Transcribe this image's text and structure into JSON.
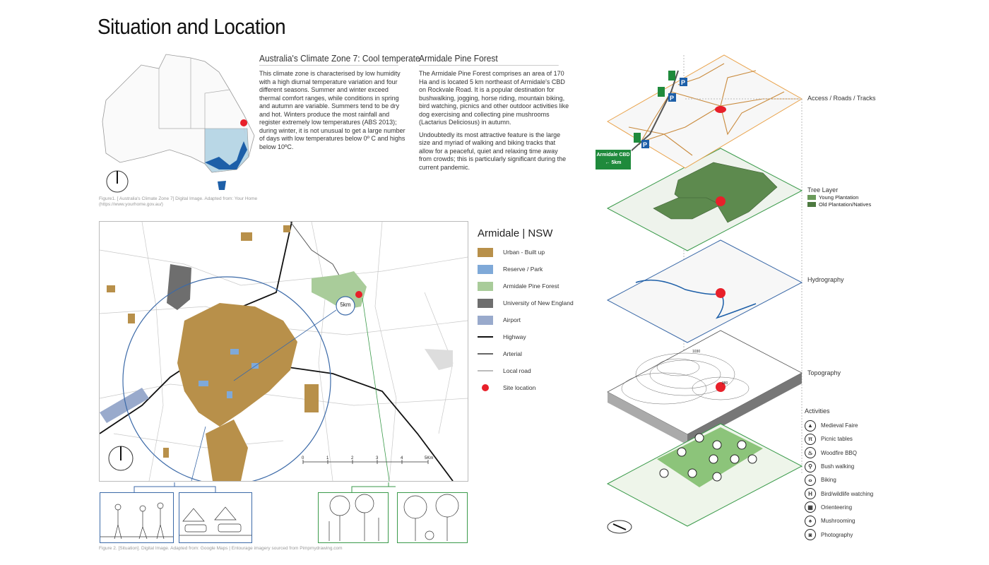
{
  "title": "Situation and Location",
  "climate": {
    "heading": "Australia's Climate Zone 7: Cool temperate",
    "body": "This climate zone is characterised by low humidity with a high diurnal temperature variation and four different seasons. Summer and winter exceed thermal comfort ranges, while conditions in spring and autumn are variable. Summers tend to be dry and hot.  Winters produce the most rainfall and register extremely low temperatures (ABS 2013); during winter, it is not unusual to get a large number of days with low temperatures below 0º C and highs below 10ºC."
  },
  "forest": {
    "heading": "Armidale Pine Forest",
    "body1": "The Armidale Pine Forest comprises an area of 170 Ha and is located 5 km northeast of Armidale's CBD on Rockvale Road. It is a popular destination for bushwalking, jogging, horse riding, mountain biking, bird watching, picnics and other outdoor activities like dog exercising and collecting pine mushrooms (Lactarius Deliciosus) in autumn.",
    "body2": "Undoubtedly its most attractive feature is the large size and myriad of walking and biking tracks that allow for a peaceful, quiet and relaxing time away from crowds; this is particularly significant during the current pandemic."
  },
  "figure1_caption": "Figure1. [ Australia's Climate Zone 7] Digital Image. Adapted from: Your Home (https://www.yourhome.gov.au/)",
  "figure2_caption": "Figure 2. [Situation]. Digital Image. Adapted from: Google Maps | Entourage imagery sourced from Pimpmydrawing.com",
  "map": {
    "radius_label": "5km",
    "scale_ticks": [
      "0",
      "1",
      "2",
      "3",
      "4",
      "5Km"
    ]
  },
  "legend": {
    "title": "Armidale  | NSW",
    "items": [
      {
        "label": "Urban - Built up",
        "type": "fill",
        "color": "#b8904a"
      },
      {
        "label": "Reserve / Park",
        "type": "fill",
        "color": "#7fa9d8"
      },
      {
        "label": "Armidale Pine Forest",
        "type": "fill",
        "color": "#a9cc9a"
      },
      {
        "label": "University of New England",
        "type": "fill",
        "color": "#6e6e6e"
      },
      {
        "label": "Airport",
        "type": "fill",
        "color": "#99aacc"
      },
      {
        "label": "Highway",
        "type": "line",
        "color": "#111111"
      },
      {
        "label": "Arterial",
        "type": "line",
        "color": "#666666"
      },
      {
        "label": "Local road",
        "type": "line",
        "color": "#bbbbbb"
      },
      {
        "label": "Site location",
        "type": "dot",
        "color": "#e8202a"
      }
    ]
  },
  "layers": {
    "access": "Access / Roads / Tracks",
    "tree": "Tree Layer",
    "tree_legend": [
      "Young Plantation",
      "Old Plantation/Natives"
    ],
    "hydro": "Hydrography",
    "topo": "Topography",
    "topo_marks": [
      "1030",
      "980"
    ],
    "activities": "Activities",
    "sign": {
      "line1": "Armidale CBD",
      "line2": "← 5km"
    },
    "parking": "P"
  },
  "activities": [
    {
      "label": "Medieval Faire",
      "icon": "tent-icon",
      "glyph": "▲"
    },
    {
      "label": "Picnic tables",
      "icon": "picnic-table-icon",
      "glyph": "π"
    },
    {
      "label": "Woodfire BBQ",
      "icon": "fire-icon",
      "glyph": "♨"
    },
    {
      "label": "Bush walking",
      "icon": "walking-icon",
      "glyph": "⚲"
    },
    {
      "label": "Biking",
      "icon": "bike-icon",
      "glyph": "ⴰ"
    },
    {
      "label": "Bird/wildlife watching",
      "icon": "binoculars-icon",
      "glyph": "H"
    },
    {
      "label": "Orienteering",
      "icon": "map-icon",
      "glyph": "▦"
    },
    {
      "label": "Mushrooming",
      "icon": "mushroom-icon",
      "glyph": "♠"
    },
    {
      "label": "Photography",
      "icon": "camera-icon",
      "glyph": "◙"
    }
  ],
  "colors": {
    "urban": "#b8904a",
    "site": "#e8202a",
    "forest_green": "#5d8a4e",
    "access_orange": "#e9a24a",
    "sign_green": "#1f8a3c",
    "parking_blue": "#1d5fa8"
  }
}
